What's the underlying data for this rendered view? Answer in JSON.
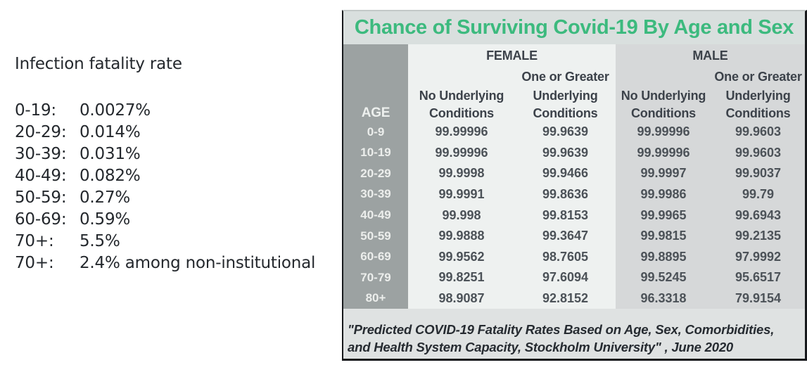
{
  "left_panel": {
    "title": "Infection fatality rate",
    "rows": [
      {
        "label": "0-19:",
        "value": "0.0027%"
      },
      {
        "label": "20-29:",
        "value": "0.014%"
      },
      {
        "label": "30-39:",
        "value": "0.031%"
      },
      {
        "label": "40-49:",
        "value": "0.082%"
      },
      {
        "label": "50-59:",
        "value": "0.27%"
      },
      {
        "label": "60-69:",
        "value": "0.59%"
      },
      {
        "label": "70+:",
        "value": "5.5%"
      },
      {
        "label": "70+:",
        "value": "2.4% among non-institutional"
      }
    ]
  },
  "table": {
    "title": "Chance of Surviving Covid-19 By Age and Sex",
    "header": {
      "age": "AGE",
      "female": "FEMALE",
      "male": "MALE",
      "one_or_greater": "One or Greater",
      "no_underlying": "No Underlying",
      "underlying": "Underlying",
      "conditions": "Conditions"
    },
    "rows": [
      {
        "age": "0-9",
        "values": [
          "99.99996",
          "99.9639",
          "99.99996",
          "99.9603"
        ]
      },
      {
        "age": "10-19",
        "values": [
          "99.99996",
          "99.9639",
          "99.99996",
          "99.9603"
        ]
      },
      {
        "age": "20-29",
        "values": [
          "99.9998",
          "99.9466",
          "99.9997",
          "99.9037"
        ]
      },
      {
        "age": "30-39",
        "values": [
          "99.9991",
          "99.8636",
          "99.9986",
          "99.79"
        ]
      },
      {
        "age": "40-49",
        "values": [
          "99.998",
          "99.8153",
          "99.9965",
          "99.6943"
        ]
      },
      {
        "age": "50-59",
        "values": [
          "99.9888",
          "99.3647",
          "99.9815",
          "99.2135"
        ]
      },
      {
        "age": "60-69",
        "values": [
          "99.9562",
          "98.7605",
          "99.8895",
          "97.9992"
        ]
      },
      {
        "age": "70-79",
        "values": [
          "99.8251",
          "97.6094",
          "99.5245",
          "95.6517"
        ]
      },
      {
        "age": "80+",
        "values": [
          "98.9087",
          "92.8152",
          "96.3318",
          "79.9154"
        ]
      }
    ],
    "footer_line1": "\"Predicted COVID-19 Fatality Rates Based on Age, Sex, Comorbidities,",
    "footer_line2": "and Health System Capacity,  Stockholm University\" , June 2020"
  },
  "colors": {
    "title_green": "#3cba7e",
    "age_column_gray": "#9ca2a2",
    "female_section_bg": "#eef1f0",
    "male_section_bg": "#d6d8d9",
    "footer_band_bg": "#dfe2e2",
    "left_text": "#24282d",
    "table_text": "#4c5258",
    "border_dark": "#17191c"
  },
  "chart_data": [
    {
      "type": "table",
      "title": "Chance of Surviving Covid-19 By Age and Sex",
      "columns": [
        "AGE",
        "FEMALE - No Underlying Conditions",
        "FEMALE - One or Greater Underlying Conditions",
        "MALE - No Underlying Conditions",
        "MALE - One or Greater Underlying Conditions"
      ],
      "rows": [
        [
          "0-9",
          99.99996,
          99.9639,
          99.99996,
          99.9603
        ],
        [
          "10-19",
          99.99996,
          99.9639,
          99.99996,
          99.9603
        ],
        [
          "20-29",
          99.9998,
          99.9466,
          99.9997,
          99.9037
        ],
        [
          "30-39",
          99.9991,
          99.8636,
          99.9986,
          99.79
        ],
        [
          "40-49",
          99.998,
          99.8153,
          99.9965,
          99.6943
        ],
        [
          "50-59",
          99.9888,
          99.3647,
          99.9815,
          99.2135
        ],
        [
          "60-69",
          99.9562,
          98.7605,
          99.8895,
          97.9992
        ],
        [
          "70-79",
          99.8251,
          97.6094,
          99.5245,
          95.6517
        ],
        [
          "80+",
          98.9087,
          92.8152,
          96.3318,
          79.9154
        ]
      ],
      "source_note": "\"Predicted COVID-19 Fatality Rates Based on Age, Sex, Comorbidities, and Health System Capacity, Stockholm University\", June 2020"
    },
    {
      "type": "table",
      "title": "Infection fatality rate",
      "columns": [
        "Age",
        "Infection fatality rate"
      ],
      "rows": [
        [
          "0-19",
          "0.0027%"
        ],
        [
          "20-29",
          "0.014%"
        ],
        [
          "30-39",
          "0.031%"
        ],
        [
          "40-49",
          "0.082%"
        ],
        [
          "50-59",
          "0.27%"
        ],
        [
          "60-69",
          "0.59%"
        ],
        [
          "70+",
          "5.5%"
        ],
        [
          "70+",
          "2.4% among non-institutional"
        ]
      ]
    }
  ]
}
